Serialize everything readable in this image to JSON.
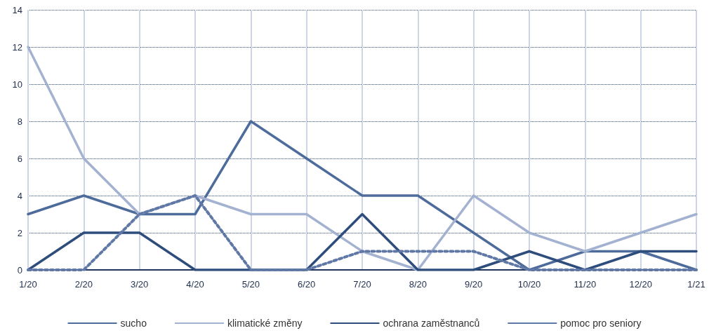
{
  "chart_data": {
    "type": "line",
    "categories": [
      "1/20",
      "2/20",
      "3/20",
      "4/20",
      "5/20",
      "6/20",
      "7/20",
      "8/20",
      "9/20",
      "10/20",
      "11/20",
      "12/20",
      "1/21"
    ],
    "series": [
      {
        "name": "sucho",
        "color": "#4d6b9b",
        "line_style": "solid",
        "values": [
          3,
          4,
          3,
          3,
          8,
          6,
          4,
          4,
          2,
          0,
          1,
          1,
          0
        ]
      },
      {
        "name": "klimatické změny",
        "color": "#a3b2d0",
        "line_style": "solid",
        "values": [
          12,
          6,
          3,
          4,
          3,
          3,
          1,
          0,
          4,
          2,
          1,
          2,
          3
        ]
      },
      {
        "name": "ochrana zaměstnanců",
        "color": "#2e4d7c",
        "line_style": "solid",
        "values": [
          0,
          2,
          2,
          0,
          0,
          0,
          3,
          0,
          0,
          1,
          0,
          1,
          1
        ]
      },
      {
        "name": "pomoc pro seniory",
        "color": "#5f78a6",
        "line_style": "dotted",
        "values": [
          0,
          0,
          3,
          4,
          0,
          0,
          1,
          1,
          1,
          0,
          0,
          0,
          0
        ]
      }
    ],
    "ylim": [
      0,
      14
    ],
    "yticks": [
      0,
      2,
      4,
      6,
      8,
      10,
      12,
      14
    ],
    "grid": true,
    "legend": "bottom",
    "marker": "none"
  }
}
